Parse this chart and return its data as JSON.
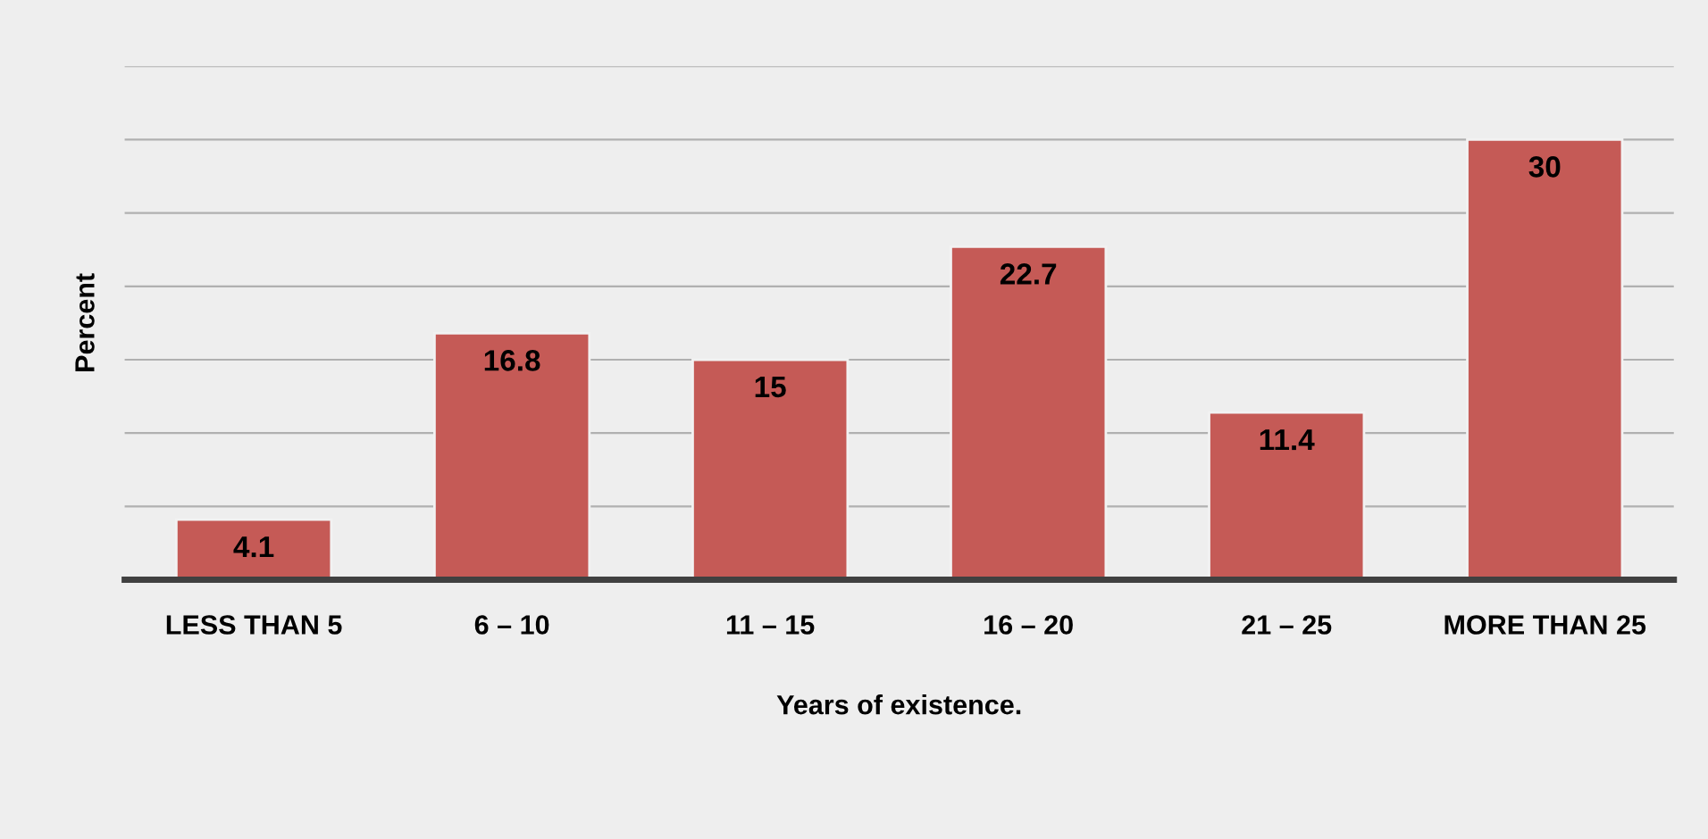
{
  "chart_data": {
    "type": "bar",
    "xlabel": "Years of existence.",
    "ylabel": "Percent",
    "categories": [
      "LESS THAN 5",
      "6 – 10",
      "11 – 15",
      "16 – 20",
      "21 – 25",
      "MORE THAN 25"
    ],
    "values": [
      4.1,
      16.8,
      15,
      22.7,
      11.4,
      30
    ],
    "color": "#c55a56",
    "ylim": [
      0,
      35
    ],
    "yticks": [
      {
        "value": 0,
        "label": null
      },
      {
        "value": 5,
        "label": null
      },
      {
        "value": 10,
        "label": null
      },
      {
        "value": 15,
        "label": null
      },
      {
        "value": 20,
        "label": null
      },
      {
        "value": 25,
        "label": null
      },
      {
        "value": 30,
        "label": null
      },
      {
        "value": 35,
        "label": null
      }
    ],
    "tick_labels": "x",
    "grid": "y",
    "data_labels": true
  }
}
